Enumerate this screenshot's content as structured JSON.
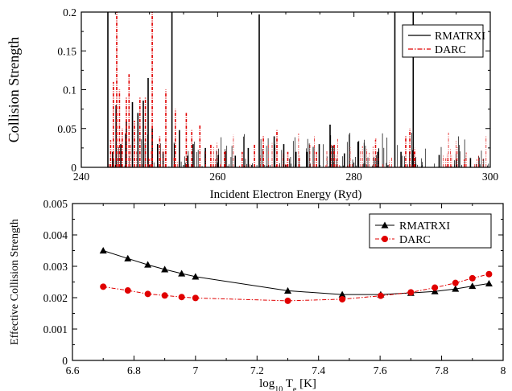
{
  "chart_data": [
    {
      "type": "line",
      "xlabel": "Incident Electron Energy (Ryd)",
      "ylabel": "Collision Strength",
      "xlim": [
        240,
        300
      ],
      "ylim": [
        0,
        0.2
      ],
      "xticks": [
        "240",
        "260",
        "280",
        "300"
      ],
      "yticks": [
        "0",
        "0.05",
        "0.1",
        "0.15",
        "0.2"
      ],
      "legend_position": "top-right",
      "grid": false,
      "series": [
        {
          "name": "RMATRXI",
          "color": "#000000",
          "dash": "solid",
          "peaks": [
            [
              243.9,
              0.2
            ],
            [
              244.6,
              0.02
            ],
            [
              245.1,
              0.08
            ],
            [
              245.8,
              0.03
            ],
            [
              246.6,
              0.06
            ],
            [
              247.5,
              0.084
            ],
            [
              248.3,
              0.07
            ],
            [
              249.1,
              0.086
            ],
            [
              249.8,
              0.115
            ],
            [
              250.4,
              0.05
            ],
            [
              251.2,
              0.03
            ],
            [
              252.0,
              0.02
            ],
            [
              253.3,
              0.2
            ],
            [
              254.4,
              0.048
            ],
            [
              255.6,
              0.015
            ],
            [
              256.4,
              0.03
            ],
            [
              258.2,
              0.025
            ],
            [
              260.1,
              0.016
            ],
            [
              262.6,
              0.015
            ],
            [
              264.5,
              0.025
            ],
            [
              266.1,
              0.197
            ],
            [
              268.3,
              0.04
            ],
            [
              269.7,
              0.03
            ],
            [
              271.5,
              0.02
            ],
            [
              273.1,
              0.02
            ],
            [
              274.9,
              0.03
            ],
            [
              276.5,
              0.055
            ],
            [
              276.9,
              0.028
            ],
            [
              278.6,
              0.018
            ],
            [
              280.6,
              0.033
            ],
            [
              283.5,
              0.02
            ],
            [
              286.0,
              0.2
            ],
            [
              286.9,
              0.02
            ],
            [
              288.7,
              0.2
            ],
            [
              292.5,
              0.016
            ],
            [
              295.0,
              0.01
            ],
            [
              297.1,
              0.012
            ]
          ]
        },
        {
          "name": "DARC",
          "color": "#e00000",
          "dash": "dash-dot",
          "peaks": [
            [
              244.3,
              0.035
            ],
            [
              244.7,
              0.11
            ],
            [
              245.2,
              0.2
            ],
            [
              245.6,
              0.1
            ],
            [
              246.0,
              0.05
            ],
            [
              246.6,
              0.09
            ],
            [
              247.0,
              0.12
            ],
            [
              247.8,
              0.06
            ],
            [
              248.6,
              0.09
            ],
            [
              249.4,
              0.09
            ],
            [
              250.4,
              0.2
            ],
            [
              251.5,
              0.04
            ],
            [
              252.4,
              0.1
            ],
            [
              253.8,
              0.075
            ],
            [
              255.4,
              0.07
            ],
            [
              256.2,
              0.048
            ],
            [
              257.4,
              0.055
            ],
            [
              259.0,
              0.03
            ],
            [
              261.0,
              0.02
            ],
            [
              263.6,
              0.02
            ],
            [
              265.4,
              0.03
            ],
            [
              266.7,
              0.04
            ],
            [
              268.7,
              0.048
            ],
            [
              270.3,
              0.02
            ],
            [
              274.5,
              0.02
            ],
            [
              277.1,
              0.03
            ],
            [
              287.6,
              0.04
            ],
            [
              288.2,
              0.05
            ],
            [
              288.9,
              0.02
            ],
            [
              296.2,
              0.01
            ]
          ]
        }
      ]
    },
    {
      "type": "line",
      "xlabel_base": "log",
      "xlabel_sub": "10",
      "xlabel_var": " T",
      "xlabel_var_sub": "e",
      "xlabel_unit": " [K]",
      "ylabel": "Effective Collision Strength",
      "xlim": [
        6.6,
        8
      ],
      "ylim": [
        0,
        0.005
      ],
      "xticks": [
        "6.6",
        "6.8",
        "7",
        "7.2",
        "7.4",
        "7.6",
        "7.8",
        "8"
      ],
      "yticks": [
        "0",
        "0.001",
        "0.002",
        "0.003",
        "0.004",
        "0.005"
      ],
      "legend_position": "top-right",
      "grid": false,
      "x": [
        6.7,
        6.78,
        6.845,
        6.9,
        6.955,
        7.0,
        7.3,
        7.477,
        7.602,
        7.7,
        7.778,
        7.845,
        7.9,
        7.954
      ],
      "series": [
        {
          "name": "RMATRXI",
          "color": "#000000",
          "marker": "triangle",
          "dash": "solid",
          "values": [
            0.0035,
            0.00325,
            0.00305,
            0.0029,
            0.00277,
            0.00267,
            0.00222,
            0.0021,
            0.0021,
            0.00215,
            0.0022,
            0.00228,
            0.00237,
            0.00245
          ]
        },
        {
          "name": "DARC",
          "color": "#e00000",
          "marker": "circle",
          "dash": "dash-dot",
          "values": [
            0.00235,
            0.00223,
            0.00212,
            0.00207,
            0.00202,
            0.00199,
            0.0019,
            0.00195,
            0.00206,
            0.00217,
            0.00232,
            0.00247,
            0.00262,
            0.00275
          ]
        }
      ]
    }
  ]
}
